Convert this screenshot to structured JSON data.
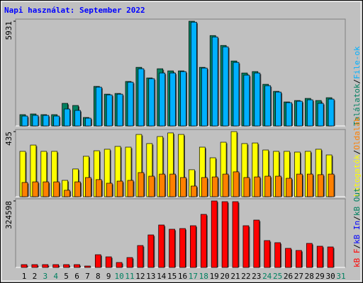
{
  "title": "Napi használat: September 2022",
  "legend_separator": "/",
  "chart_data": [
    {
      "type": "bar",
      "ylim": [
        0,
        5931
      ],
      "yticks": [
        5931
      ],
      "series": [
        {
          "name": "Találatok",
          "color": "#008060",
          "values": [
            640,
            680,
            640,
            640,
            1280,
            1160,
            480,
            2240,
            1800,
            1840,
            2520,
            3320,
            2720,
            3240,
            3120,
            3120,
            5931,
            3320,
            5120,
            4560,
            3680,
            3000,
            3080,
            2360,
            1960,
            1360,
            1440,
            1560,
            1440,
            1600,
            null
          ]
        },
        {
          "name": "File-ok",
          "color": "#00b0ff",
          "values": [
            560,
            600,
            600,
            560,
            960,
            880,
            440,
            2200,
            1760,
            1800,
            2480,
            3240,
            2680,
            3000,
            3000,
            3080,
            5880,
            3280,
            5040,
            4480,
            3600,
            2880,
            3000,
            2280,
            1920,
            1320,
            1400,
            1480,
            1280,
            1520,
            null
          ]
        }
      ]
    },
    {
      "type": "bar",
      "ylim": [
        0,
        435
      ],
      "yticks": [
        435
      ],
      "series": [
        {
          "name": "Látogatók",
          "color": "#ffff00",
          "values": [
            303,
            345,
            303,
            303,
            109,
            185,
            270,
            307,
            317,
            336,
            331,
            416,
            355,
            402,
            426,
            416,
            180,
            331,
            260,
            364,
            435,
            355,
            359,
            312,
            303,
            303,
            298,
            303,
            317,
            279,
            null
          ]
        },
        {
          "name": "Oldalak",
          "color": "#ff8000",
          "values": [
            95,
            99,
            99,
            99,
            43,
            99,
            128,
            114,
            90,
            104,
            109,
            161,
            137,
            151,
            151,
            128,
            71,
            128,
            132,
            151,
            166,
            128,
            132,
            137,
            137,
            123,
            151,
            151,
            147,
            151,
            null
          ]
        }
      ]
    },
    {
      "type": "bar",
      "ylim": [
        0,
        324598
      ],
      "yticks": [
        324598
      ],
      "series": [
        {
          "name": "kB F",
          "color": "#ff0000",
          "values": [
            13800,
            13800,
            13800,
            13800,
            13800,
            13800,
            6900,
            62150,
            51800,
            24170,
            48340,
            107000,
            158800,
            207200,
            186500,
            189900,
            203700,
            259000,
            324598,
            321100,
            321100,
            203700,
            231300,
            131200,
            120900,
            93200,
            82900,
            117400,
            103600,
            100100,
            null
          ]
        }
      ],
      "extra_legend": [
        {
          "name": "kB In",
          "color": "#0000ff"
        },
        {
          "name": "kB Out",
          "color": "#008060"
        }
      ],
      "categories": [
        "1",
        "2",
        "3",
        "4",
        "5",
        "6",
        "7",
        "8",
        "9",
        "10",
        "11",
        "12",
        "13",
        "14",
        "15",
        "16",
        "17",
        "18",
        "19",
        "20",
        "21",
        "22",
        "23",
        "24",
        "25",
        "26",
        "27",
        "28",
        "29",
        "30",
        "31"
      ],
      "category_colors": [
        "#000000",
        "#000000",
        "#008060",
        "#008060",
        "#000000",
        "#000000",
        "#000000",
        "#000000",
        "#000000",
        "#008060",
        "#008060",
        "#000000",
        "#000000",
        "#000000",
        "#000000",
        "#000000",
        "#008060",
        "#008060",
        "#000000",
        "#000000",
        "#000000",
        "#000000",
        "#000000",
        "#008060",
        "#008060",
        "#000000",
        "#000000",
        "#000000",
        "#000000",
        "#000000",
        "#008060"
      ]
    }
  ]
}
